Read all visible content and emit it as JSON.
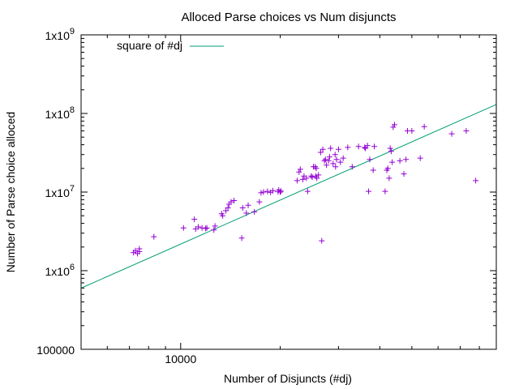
{
  "chart_data": {
    "type": "scatter",
    "title": "Alloced Parse choices vs Num disjuncts",
    "xlabel": "Number of Disjuncts (#dj)",
    "ylabel": "Number of Parse choice alloced",
    "x_scale": "log",
    "y_scale": "log",
    "xlim": [
      5000,
      90000
    ],
    "ylim": [
      100000,
      1000000000
    ],
    "x_tick_labels": [
      {
        "value": 10000,
        "label": "10000"
      }
    ],
    "y_tick_labels": [
      {
        "value": 100000,
        "label": "100000"
      },
      {
        "value": 1000000,
        "label": "1x10",
        "exp": "6"
      },
      {
        "value": 10000000,
        "label": "1x10",
        "exp": "7"
      },
      {
        "value": 100000000,
        "label": "1x10",
        "exp": "8"
      },
      {
        "value": 1000000000,
        "label": "1x10",
        "exp": "9"
      }
    ],
    "grid": false,
    "legend_position": "top-left",
    "legend_label": "square of #dj",
    "colors": {
      "points": "#9400d3",
      "fit_line": "#009e73"
    },
    "series": [
      {
        "style": "points",
        "marker": "+",
        "x": [
          7200,
          7300,
          7400,
          7500,
          7500,
          8300,
          10200,
          11000,
          11100,
          11300,
          11600,
          11900,
          12000,
          12600,
          12700,
          13300,
          13400,
          13700,
          13900,
          14000,
          14200,
          14500,
          15300,
          15400,
          15800,
          16000,
          16700,
          17300,
          17500,
          17800,
          18300,
          18700,
          19000,
          19700,
          19800,
          20000,
          20100,
          22500,
          22800,
          23000,
          23400,
          23600,
          24000,
          24200,
          24800,
          25000,
          25200,
          25500,
          25600,
          25700,
          25800,
          26100,
          26500,
          26700,
          26900,
          27200,
          27400,
          27600,
          28000,
          28200,
          28400,
          28900,
          29300,
          29400,
          29600,
          30000,
          30400,
          31000,
          32000,
          33000,
          34500,
          36000,
          36200,
          36700,
          37000,
          37300,
          38200,
          38500,
          41500,
          42000,
          42300,
          42700,
          43000,
          43300,
          43600,
          43900,
          44300,
          46000,
          47300,
          48000,
          48500,
          50000,
          53000,
          54500,
          66000,
          73000,
          78000
        ],
        "y": [
          1700000,
          1800000,
          1650000,
          1750000,
          1900000,
          2700000,
          3500000,
          4500000,
          3400000,
          3600000,
          3500000,
          3450000,
          3500000,
          3300000,
          3700000,
          5300000,
          5000000,
          5800000,
          6300000,
          7000000,
          7500000,
          7800000,
          2600000,
          6300000,
          5400000,
          6800000,
          5600000,
          7500000,
          9800000,
          10000000,
          10200000,
          9900000,
          10400000,
          10100000,
          10600000,
          10000000,
          10300000,
          14000000,
          18000000,
          19500000,
          14500000,
          16000000,
          15000000,
          10200000,
          16000000,
          15500000,
          21000000,
          21000000,
          16000000,
          20000000,
          15000000,
          16500000,
          32000000,
          2400000,
          35000000,
          25000000,
          26000000,
          22000000,
          25000000,
          28000000,
          36000000,
          23000000,
          30000000,
          21000000,
          26000000,
          35000000,
          24000000,
          27000000,
          37000000,
          21000000,
          38000000,
          37000000,
          36000000,
          39000000,
          10200000,
          26000000,
          19000000,
          38000000,
          10200000,
          19000000,
          20000000,
          15000000,
          36000000,
          33000000,
          24000000,
          67000000,
          72000000,
          25000000,
          17000000,
          26000000,
          60000000,
          60000000,
          27000000,
          68000000,
          55000000,
          60000000,
          14000000
        ]
      },
      {
        "style": "line",
        "name": "square of #dj",
        "x": [
          5000,
          90000
        ],
        "y": [
          600000,
          130000000
        ]
      }
    ]
  }
}
